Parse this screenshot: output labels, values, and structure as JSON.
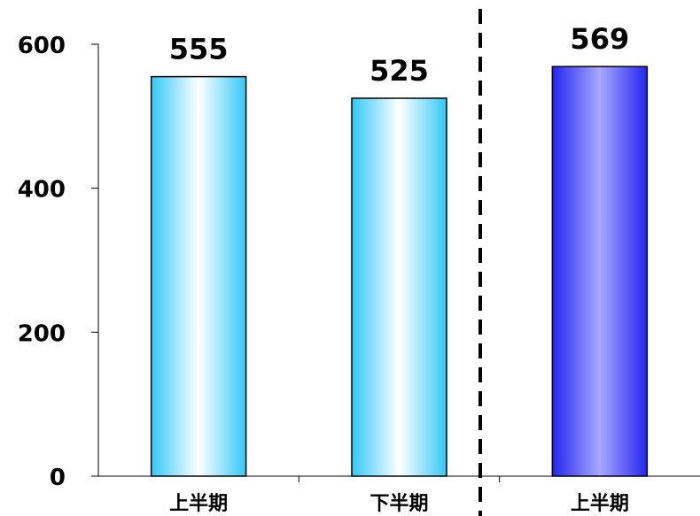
{
  "chart_data": {
    "type": "bar",
    "categories": [
      "上半期",
      "下半期",
      "上半期"
    ],
    "values": [
      555,
      525,
      569
    ],
    "yticks": [
      0,
      200,
      400,
      600
    ],
    "ylim": [
      0,
      600
    ],
    "grid": false,
    "legend": "none",
    "bar_styles": [
      "light-blue-gradient",
      "light-blue-gradient",
      "blue-gradient"
    ],
    "colors": {
      "light_edge": "#33c8f5",
      "light_center": "#ffffff",
      "dark_edge": "#2525ee",
      "dark_center": "#a8a8ff",
      "axis": "#000000"
    },
    "separator": "dashed-vertical-line"
  }
}
